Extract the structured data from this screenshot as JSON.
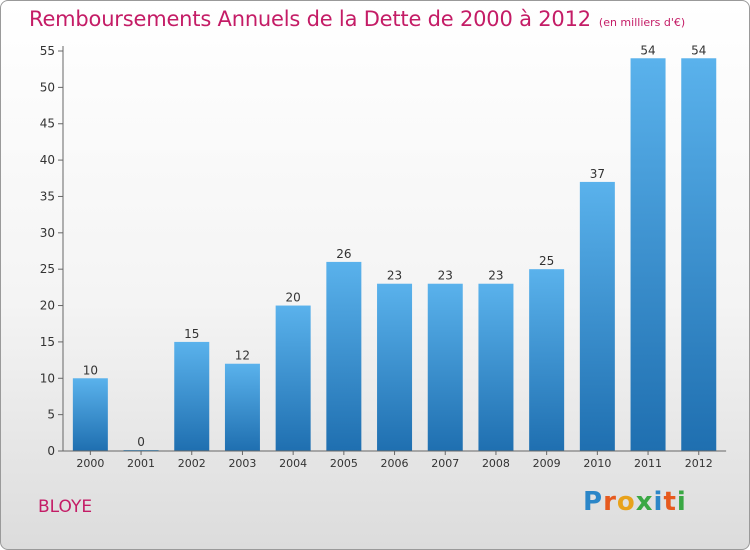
{
  "title": "Remboursements Annuels de la Dette de 2000 à 2012",
  "unit_note": "(en milliers d'€)",
  "commune": "BLOYE",
  "logo": {
    "text": "Proxiti",
    "letters": [
      "P",
      "r",
      "o",
      "x",
      "i",
      "t",
      "i"
    ],
    "colors": [
      "#2b86c8",
      "#e65a1e",
      "#e8a21b",
      "#3aa844",
      "#2b86c8",
      "#e65a1e",
      "#3aa844"
    ]
  },
  "colors": {
    "title": "#c41c66",
    "bar_top": "#5ab2ec",
    "bar_bottom": "#1f6fb0"
  },
  "chart_data": {
    "type": "bar",
    "categories": [
      "2000",
      "2001",
      "2002",
      "2003",
      "2004",
      "2005",
      "2006",
      "2007",
      "2008",
      "2009",
      "2010",
      "2011",
      "2012"
    ],
    "values": [
      10,
      0,
      15,
      12,
      20,
      26,
      23,
      23,
      23,
      25,
      37,
      54,
      54
    ],
    "ylim": [
      0,
      55
    ],
    "yticks": [
      0,
      5,
      10,
      15,
      20,
      25,
      30,
      35,
      40,
      45,
      50,
      55
    ],
    "grid": false
  }
}
